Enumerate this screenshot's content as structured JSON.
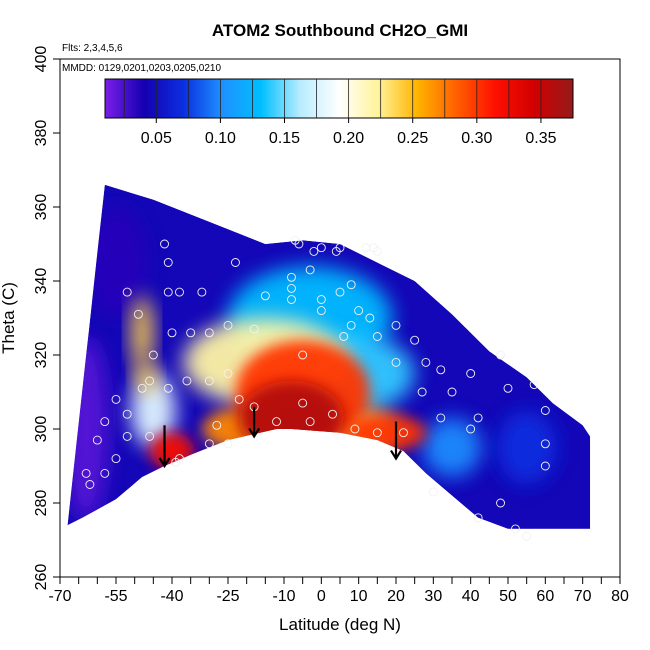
{
  "chart_data": {
    "type": "heatmap",
    "title": "ATOM2 Southbound CH2O_GMI",
    "subtitle_flights": "Flts: 2,3,4,5,6",
    "subtitle_dates": "MMDD: 0129,0201,0203,0205,0210",
    "xlabel": "Latitude (deg N)",
    "ylabel": "Theta (C)",
    "xlim": [
      -70,
      80
    ],
    "ylim": [
      260,
      400
    ],
    "x_tick_labels": [
      "-70",
      "-55",
      "-40",
      "-25",
      "-10",
      "0",
      "10",
      "20",
      "30",
      "40",
      "50",
      "60",
      "70",
      "80"
    ],
    "x_tick_values": [
      -70,
      -55,
      -40,
      -25,
      -10,
      0,
      10,
      20,
      30,
      40,
      50,
      60,
      70,
      80
    ],
    "x_minor_ticks": [
      -65,
      -60,
      -50,
      -45,
      -35,
      -30,
      -20,
      -15,
      -5,
      5,
      15,
      25,
      35,
      45,
      55,
      65,
      75
    ],
    "y_tick_labels": [
      "260",
      "280",
      "300",
      "320",
      "340",
      "360",
      "380",
      "400"
    ],
    "y_tick_values": [
      260,
      280,
      300,
      320,
      340,
      360,
      380,
      400
    ],
    "colorbar": {
      "range": [
        0.01,
        0.375
      ],
      "tick_labels": [
        "0.05",
        "0.10",
        "0.15",
        "0.20",
        "0.25",
        "0.30",
        "0.35"
      ],
      "tick_values": [
        0.05,
        0.1,
        0.15,
        0.2,
        0.25,
        0.3,
        0.35
      ],
      "division_values": [
        0.025,
        0.05,
        0.075,
        0.1,
        0.125,
        0.15,
        0.175,
        0.2,
        0.225,
        0.25,
        0.275,
        0.3,
        0.325,
        0.35
      ],
      "colors": [
        "#7a1fe8",
        "#1500b0",
        "#0a2ee0",
        "#1e90ff",
        "#00bfff",
        "#b8ecff",
        "#ffffff",
        "#fff39a",
        "#ffb400",
        "#ff6000",
        "#ff1000",
        "#d10000",
        "#951a1a"
      ]
    },
    "domain_top": [
      [
        -68,
        274
      ],
      [
        -58,
        366
      ],
      [
        -45,
        362
      ],
      [
        -30,
        356
      ],
      [
        -15,
        350
      ],
      [
        -5,
        351
      ],
      [
        5,
        350
      ],
      [
        15,
        345
      ],
      [
        25,
        340
      ],
      [
        35,
        331
      ],
      [
        45,
        321
      ],
      [
        55,
        314
      ],
      [
        62,
        307
      ],
      [
        70,
        301
      ],
      [
        72,
        298
      ]
    ],
    "domain_bottom": [
      [
        -68,
        274
      ],
      [
        -64,
        276
      ],
      [
        -55,
        281
      ],
      [
        -48,
        287
      ],
      [
        -42,
        290
      ],
      [
        -35,
        293
      ],
      [
        -25,
        297
      ],
      [
        -12,
        300
      ],
      [
        -8,
        300
      ],
      [
        5,
        299
      ],
      [
        15,
        297
      ],
      [
        22,
        294
      ],
      [
        28,
        288
      ],
      [
        35,
        282
      ],
      [
        42,
        276
      ],
      [
        50,
        273
      ],
      [
        60,
        273
      ],
      [
        72,
        273
      ]
    ],
    "hotspots": [
      {
        "lat": -8,
        "theta": 303,
        "value": 0.36,
        "rx": 14,
        "ry": 10
      },
      {
        "lat": -5,
        "theta": 310,
        "value": 0.3,
        "rx": 18,
        "ry": 14
      },
      {
        "lat": 17,
        "theta": 299,
        "value": 0.3,
        "rx": 11,
        "ry": 5
      },
      {
        "lat": -40,
        "theta": 294,
        "value": 0.32,
        "rx": 6,
        "ry": 5
      },
      {
        "lat": -20,
        "theta": 300,
        "value": 0.27,
        "rx": 12,
        "ry": 6
      },
      {
        "lat": -48,
        "theta": 326,
        "value": 0.24,
        "rx": 3,
        "ry": 10
      },
      {
        "lat": -47,
        "theta": 314,
        "value": 0.24,
        "rx": 3,
        "ry": 4
      },
      {
        "lat": -15,
        "theta": 318,
        "value": 0.22,
        "rx": 22,
        "ry": 12
      },
      {
        "lat": 10,
        "theta": 300,
        "value": 0.24,
        "rx": 10,
        "ry": 6
      },
      {
        "lat": -3,
        "theta": 330,
        "value": 0.13,
        "rx": 22,
        "ry": 14
      },
      {
        "lat": 10,
        "theta": 315,
        "value": 0.14,
        "rx": 15,
        "ry": 10
      },
      {
        "lat": -45,
        "theta": 305,
        "value": 0.18,
        "rx": 6,
        "ry": 10
      },
      {
        "lat": 35,
        "theta": 295,
        "value": 0.1,
        "rx": 8,
        "ry": 8
      },
      {
        "lat": 55,
        "theta": 295,
        "value": 0.07,
        "rx": 8,
        "ry": 10
      },
      {
        "lat": -55,
        "theta": 345,
        "value": 0.035,
        "rx": 8,
        "ry": 15
      },
      {
        "lat": -63,
        "theta": 300,
        "value": 0.02,
        "rx": 6,
        "ry": 25
      }
    ],
    "background_value": 0.045,
    "observations": [
      [
        -42,
        350
      ],
      [
        -41,
        345
      ],
      [
        -52,
        337
      ],
      [
        -41,
        337
      ],
      [
        -32,
        337
      ],
      [
        -38,
        337
      ],
      [
        -49,
        331
      ],
      [
        -45,
        320
      ],
      [
        -40,
        326
      ],
      [
        -35,
        326
      ],
      [
        -30,
        326
      ],
      [
        -25,
        328
      ],
      [
        -18,
        327
      ],
      [
        -5,
        320
      ],
      [
        -48,
        311
      ],
      [
        -55,
        308
      ],
      [
        -52,
        304
      ],
      [
        -41,
        311
      ],
      [
        -46,
        313
      ],
      [
        -36,
        313
      ],
      [
        -30,
        313
      ],
      [
        -25,
        315
      ],
      [
        -60,
        297
      ],
      [
        -58,
        302
      ],
      [
        -63,
        288
      ],
      [
        -52,
        298
      ],
      [
        -46,
        298
      ],
      [
        -39,
        291
      ],
      [
        -23,
        345
      ],
      [
        -7,
        351
      ],
      [
        -6,
        350
      ],
      [
        -2,
        348
      ],
      [
        0,
        349
      ],
      [
        5,
        349
      ],
      [
        4,
        348
      ],
      [
        12,
        349
      ],
      [
        14,
        349
      ],
      [
        15,
        348
      ],
      [
        -8,
        341
      ],
      [
        -8,
        338
      ],
      [
        -3,
        343
      ],
      [
        -8,
        335
      ],
      [
        -15,
        336
      ],
      [
        0,
        335
      ],
      [
        5,
        337
      ],
      [
        8,
        339
      ],
      [
        0,
        332
      ],
      [
        6,
        325
      ],
      [
        10,
        332
      ],
      [
        13,
        330
      ],
      [
        8,
        328
      ],
      [
        15,
        325
      ],
      [
        20,
        328
      ],
      [
        25,
        324
      ],
      [
        20,
        318
      ],
      [
        28,
        318
      ],
      [
        32,
        316
      ],
      [
        27,
        310
      ],
      [
        35,
        310
      ],
      [
        40,
        315
      ],
      [
        42,
        303
      ],
      [
        48,
        320
      ],
      [
        50,
        311
      ],
      [
        57,
        312
      ],
      [
        60,
        305
      ],
      [
        60,
        296
      ],
      [
        60,
        290
      ],
      [
        32,
        303
      ],
      [
        40,
        300
      ],
      [
        22,
        299
      ],
      [
        15,
        299
      ],
      [
        9,
        300
      ],
      [
        3,
        304
      ],
      [
        -3,
        302
      ],
      [
        -5,
        307
      ],
      [
        -12,
        302
      ],
      [
        -18,
        306
      ],
      [
        -22,
        308
      ],
      [
        -28,
        301
      ],
      [
        -30,
        296
      ],
      [
        -25,
        296
      ],
      [
        -38,
        292
      ],
      [
        -55,
        292
      ],
      [
        -58,
        288
      ],
      [
        -62,
        285
      ],
      [
        48,
        280
      ],
      [
        52,
        273
      ],
      [
        55,
        271
      ],
      [
        42,
        276
      ],
      [
        30,
        283
      ]
    ],
    "arrows": [
      {
        "lat": -42,
        "theta_start": 301,
        "theta_end": 290
      },
      {
        "lat": -18,
        "theta_start": 306,
        "theta_end": 298
      },
      {
        "lat": 20,
        "theta_start": 302,
        "theta_end": 292
      }
    ]
  }
}
